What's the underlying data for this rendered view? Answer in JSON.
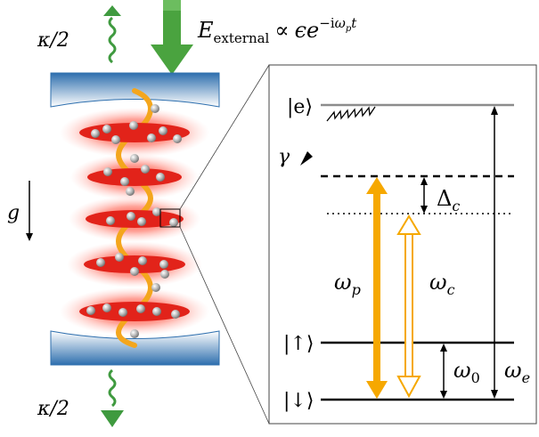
{
  "cavity": {
    "loss_top_label": "κ/2",
    "loss_bottom_label": "κ/2",
    "gravity_label": "g",
    "pump_label": {
      "symbol": "E",
      "subscript": "external",
      "relation": "∝",
      "amplitude": "ϵe",
      "exponent_minus_i": "−i",
      "exponent_omega": "ω",
      "exponent_sub": "p",
      "exponent_t": "t"
    },
    "colors": {
      "mirror_top": "#2e6fae",
      "mirror_light": "#ffffff",
      "loss_arrow": "#3f9a3f",
      "pump_arrow": "#4aa33f",
      "standing_wave": "#f4a61d",
      "antinode": "#e2231a",
      "antinode_glow": "#ff6b5a",
      "atom": "#9a9a9a"
    }
  },
  "levels": {
    "excited": "|e⟩",
    "spin_up": "|↑⟩",
    "spin_down": "|↓⟩",
    "decay": "γ",
    "detuning": {
      "symbol": "Δ",
      "sub": "c"
    },
    "pump_freq": {
      "symbol": "ω",
      "sub": "p"
    },
    "cavity_freq": {
      "symbol": "ω",
      "sub": "c"
    },
    "zeeman_freq": {
      "symbol": "ω",
      "sub": "0"
    },
    "excited_freq": {
      "symbol": "ω",
      "sub": "e"
    },
    "colors": {
      "level_gray": "#8c8c8c",
      "pump_arrow": "#f6a800",
      "cavity_arrow": "#f6a800"
    }
  }
}
